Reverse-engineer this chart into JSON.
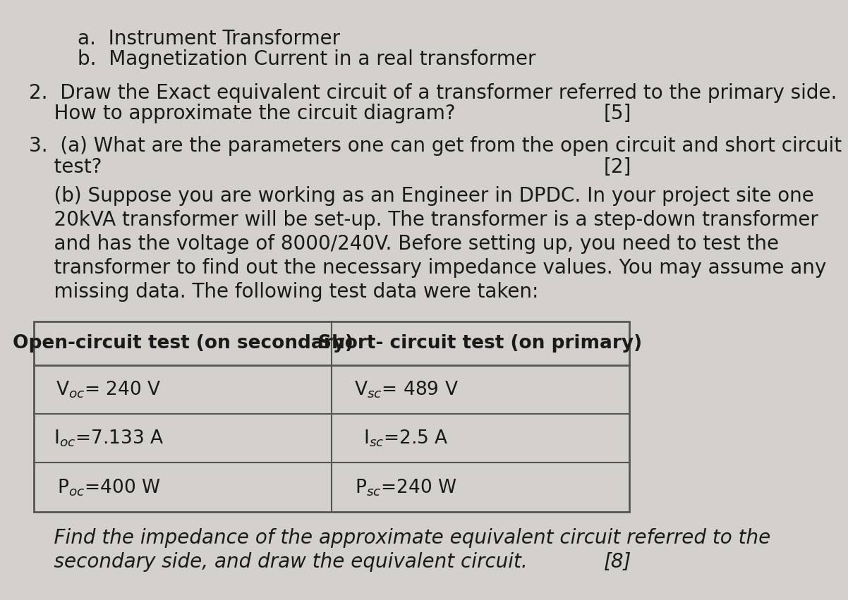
{
  "bg_color": "#d4d0cc",
  "text_color": "#1a1a1a",
  "line_a": "a.  Instrument Transformer",
  "line_b": "b.  Magnetization Current in a real transformer",
  "q2_line1": "2.  Draw the Exact equivalent circuit of a transformer referred to the primary side.",
  "q2_line2": "    How to approximate the circuit diagram?",
  "q2_marks": "[5]",
  "q3a_line1": "3.  (a) What are the parameters one can get from the open circuit and short circuit",
  "q3a_line2": "    test?",
  "q3a_marks": "[2]",
  "q3b_indent": "    ",
  "q3b_line1": "    (b) Suppose you are working as an Engineer in DPDC. In your project site one",
  "q3b_line2": "    20kVA transformer will be set-up. The transformer is a step-down transformer",
  "q3b_line3": "    and has the voltage of 8000/240V. Before setting up, you need to test the",
  "q3b_line4": "    transformer to find out the necessary impedance values. You may assume any",
  "q3b_line5": "    missing data. The following test data were taken:",
  "table_header_left": "Open-circuit test (on secondary)",
  "table_header_right": "Short- circuit test (on primary)",
  "table_row1_left_plain": "V",
  "table_row1_left_sub": "oc",
  "table_row1_left_rest": "= 240 V",
  "table_row1_right_plain": "V",
  "table_row1_right_sub": "sc",
  "table_row1_right_rest": "= 489 V",
  "table_row2_left_plain": "I",
  "table_row2_left_sub": "oc",
  "table_row2_left_rest": "=7.133 A",
  "table_row2_right_plain": "I",
  "table_row2_right_sub": "sc",
  "table_row2_right_rest": "=2.5 A",
  "table_row3_left_plain": "P",
  "table_row3_left_sub": "oc",
  "table_row3_left_rest": "=400 W",
  "table_row3_right_plain": "P",
  "table_row3_right_sub": "sc",
  "table_row3_right_rest": "=240 W",
  "footer_line1": "    Find the impedance of the approximate equivalent circuit referred to the",
  "footer_line2": "    secondary side, and draw the equivalent circuit.",
  "footer_marks": "[8]"
}
